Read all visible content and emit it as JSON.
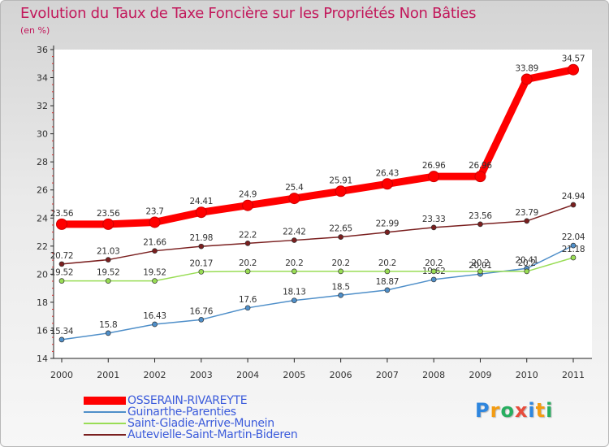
{
  "title": "Evolution du Taux de Taxe Foncière sur les Propriétés Non Bâties",
  "unit_label": "(en %)",
  "logo": {
    "text": "Proxiti",
    "letters": [
      "P",
      "r",
      "o",
      "x",
      "i",
      "t",
      "i"
    ],
    "colors": [
      "#2e86de",
      "#f39c12",
      "#27ae60",
      "#e74c3c",
      "#2e86de",
      "#f39c12",
      "#27ae60"
    ]
  },
  "chart_data": {
    "type": "line",
    "title": "Evolution du Taux de Taxe Foncière sur les Propriétés Non Bâties",
    "ylabel": "(en %)",
    "x": [
      "2000",
      "2001",
      "2002",
      "2003",
      "2004",
      "2005",
      "2006",
      "2007",
      "2008",
      "2009",
      "2010",
      "2011"
    ],
    "ylim": [
      14,
      36
    ],
    "yticks": [
      14,
      16,
      18,
      20,
      22,
      24,
      26,
      28,
      30,
      32,
      34,
      36
    ],
    "grid": false,
    "legend_position": "bottom-left",
    "series": [
      {
        "name": "OSSERAIN-RIVAREYTE",
        "color": "#ff0000",
        "values": [
          23.56,
          23.56,
          23.7,
          24.41,
          24.9,
          25.4,
          25.91,
          26.43,
          26.96,
          26.96,
          33.89,
          34.57
        ],
        "labels": [
          "23.56",
          "23.56",
          "23.7",
          "24.41",
          "24.9",
          "25.4",
          "25.91",
          "26.43",
          "26.96",
          "26.96",
          "33.89",
          "34.57"
        ]
      },
      {
        "name": "Guinarthe-Parenties",
        "color": "#4f8fc9",
        "values": [
          15.34,
          15.8,
          16.43,
          16.76,
          17.6,
          18.13,
          18.5,
          18.87,
          19.62,
          20.01,
          20.41,
          22.04
        ],
        "labels": [
          "15.34",
          "15.8",
          "16.43",
          "16.76",
          "17.6",
          "18.13",
          "18.5",
          "18.87",
          "19.62",
          "20.01",
          "20.41",
          "22.04"
        ]
      },
      {
        "name": "Saint-Gladie-Arrive-Munein",
        "color": "#99dd55",
        "values": [
          19.52,
          19.52,
          19.52,
          20.17,
          20.2,
          20.2,
          20.2,
          20.2,
          20.2,
          20.2,
          20.2,
          21.18
        ],
        "labels": [
          "19.52",
          "19.52",
          "19.52",
          "20.17",
          "20.2",
          "20.2",
          "20.2",
          "20.2",
          "20.2",
          "20.2",
          "20.2",
          "21.18"
        ]
      },
      {
        "name": "Autevielle-Saint-Martin-Bideren",
        "color": "#7a1f1f",
        "values": [
          20.72,
          21.03,
          21.66,
          21.98,
          22.2,
          22.42,
          22.65,
          22.99,
          23.33,
          23.56,
          23.79,
          24.94
        ],
        "labels": [
          "20.72",
          "21.03",
          "21.66",
          "21.98",
          "22.2",
          "22.42",
          "22.65",
          "22.99",
          "23.33",
          "23.56",
          "23.79",
          "24.94"
        ]
      }
    ]
  }
}
